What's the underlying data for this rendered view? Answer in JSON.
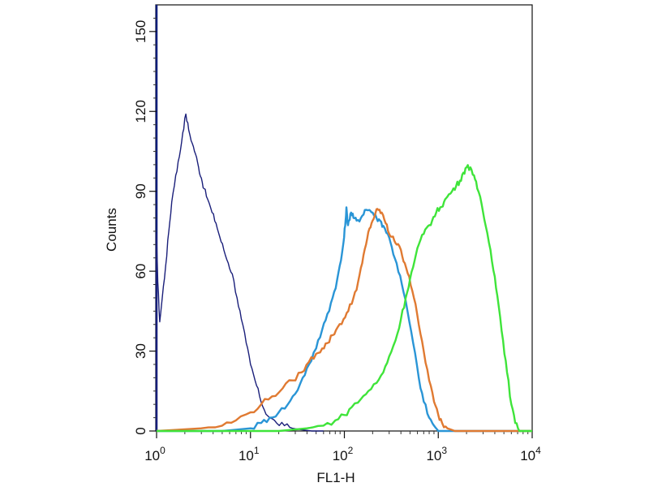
{
  "chart_data": {
    "type": "line",
    "title": "",
    "xlabel": "FL1-H",
    "ylabel": "Counts",
    "x_scale": "log",
    "xlim": [
      1,
      10000
    ],
    "ylim": [
      0,
      160
    ],
    "x_ticks": [
      {
        "base": "10",
        "exp": "0",
        "value": 1
      },
      {
        "base": "10",
        "exp": "1",
        "value": 10
      },
      {
        "base": "10",
        "exp": "2",
        "value": 100
      },
      {
        "base": "10",
        "exp": "3",
        "value": 1000
      },
      {
        "base": "10",
        "exp": "4",
        "value": 10000
      }
    ],
    "y_ticks": [
      "0",
      "30",
      "60",
      "90",
      "120",
      "150"
    ],
    "grid": false,
    "legend": "none",
    "series": [
      {
        "color": "#1a1f7a",
        "stroke_width": 1.4,
        "points": [
          [
            1.0,
            0
          ],
          [
            1.0,
            74
          ],
          [
            1.03,
            56
          ],
          [
            1.08,
            41
          ],
          [
            1.15,
            50
          ],
          [
            1.25,
            62
          ],
          [
            1.35,
            75
          ],
          [
            1.45,
            86
          ],
          [
            1.6,
            96
          ],
          [
            1.75,
            103
          ],
          [
            1.9,
            112
          ],
          [
            2.05,
            119
          ],
          [
            2.2,
            113
          ],
          [
            2.4,
            108
          ],
          [
            2.6,
            104
          ],
          [
            2.8,
            99
          ],
          [
            3.0,
            95
          ],
          [
            3.2,
            91
          ],
          [
            3.5,
            87
          ],
          [
            3.9,
            82
          ],
          [
            4.3,
            78
          ],
          [
            4.7,
            73
          ],
          [
            5.2,
            68
          ],
          [
            5.8,
            63
          ],
          [
            6.4,
            59
          ],
          [
            7.2,
            50
          ],
          [
            8.0,
            42
          ],
          [
            9.0,
            33
          ],
          [
            10.0,
            25
          ],
          [
            11.2,
            19
          ],
          [
            12.5,
            13
          ],
          [
            14.0,
            8
          ],
          [
            16.0,
            5
          ],
          [
            19.0,
            3
          ],
          [
            23.0,
            2
          ],
          [
            28.0,
            1
          ],
          [
            35.0,
            0.5
          ],
          [
            45.0,
            0
          ],
          [
            60.0,
            0
          ]
        ]
      },
      {
        "color": "#2a95d6",
        "stroke_width": 2.4,
        "points": [
          [
            1,
            0
          ],
          [
            5,
            0
          ],
          [
            10,
            1
          ],
          [
            13,
            3
          ],
          [
            16,
            5
          ],
          [
            20,
            7
          ],
          [
            25,
            10
          ],
          [
            30,
            14
          ],
          [
            36,
            20
          ],
          [
            42,
            25
          ],
          [
            50,
            31
          ],
          [
            58,
            38
          ],
          [
            66,
            44
          ],
          [
            75,
            50
          ],
          [
            84,
            57
          ],
          [
            92,
            64
          ],
          [
            98,
            71
          ],
          [
            102,
            77
          ],
          [
            105,
            84
          ],
          [
            108,
            78
          ],
          [
            112,
            79
          ],
          [
            118,
            82
          ],
          [
            125,
            80
          ],
          [
            135,
            79
          ],
          [
            150,
            80
          ],
          [
            165,
            83
          ],
          [
            185,
            83
          ],
          [
            200,
            82
          ],
          [
            220,
            80
          ],
          [
            240,
            79
          ],
          [
            260,
            77
          ],
          [
            290,
            74
          ],
          [
            320,
            69
          ],
          [
            360,
            63
          ],
          [
            410,
            55
          ],
          [
            470,
            45
          ],
          [
            540,
            33
          ],
          [
            620,
            20
          ],
          [
            700,
            11
          ],
          [
            800,
            5
          ],
          [
            900,
            2
          ],
          [
            1000,
            0
          ],
          [
            10000,
            0
          ]
        ]
      },
      {
        "color": "#e07a32",
        "stroke_width": 2.4,
        "points": [
          [
            1,
            0
          ],
          [
            3,
            1
          ],
          [
            5,
            2
          ],
          [
            7,
            4
          ],
          [
            10,
            7
          ],
          [
            13,
            10
          ],
          [
            17,
            13
          ],
          [
            22,
            16
          ],
          [
            28,
            19
          ],
          [
            35,
            22
          ],
          [
            42,
            26
          ],
          [
            50,
            29
          ],
          [
            58,
            31
          ],
          [
            66,
            33
          ],
          [
            75,
            36
          ],
          [
            85,
            39
          ],
          [
            98,
            42
          ],
          [
            110,
            45
          ],
          [
            125,
            50
          ],
          [
            140,
            56
          ],
          [
            155,
            63
          ],
          [
            170,
            70
          ],
          [
            185,
            76
          ],
          [
            200,
            79
          ],
          [
            215,
            82
          ],
          [
            230,
            83
          ],
          [
            250,
            82
          ],
          [
            275,
            78
          ],
          [
            300,
            74
          ],
          [
            330,
            73
          ],
          [
            360,
            70
          ],
          [
            400,
            68
          ],
          [
            440,
            63
          ],
          [
            490,
            58
          ],
          [
            550,
            50
          ],
          [
            620,
            40
          ],
          [
            700,
            30
          ],
          [
            800,
            19
          ],
          [
            900,
            11
          ],
          [
            1000,
            6
          ],
          [
            1100,
            3
          ],
          [
            1250,
            1
          ],
          [
            1500,
            0
          ],
          [
            10000,
            0
          ]
        ]
      },
      {
        "color": "#3fe43a",
        "stroke_width": 2.4,
        "points": [
          [
            1,
            0
          ],
          [
            20,
            0
          ],
          [
            40,
            1
          ],
          [
            60,
            2
          ],
          [
            80,
            4
          ],
          [
            100,
            6
          ],
          [
            120,
            9
          ],
          [
            150,
            12
          ],
          [
            180,
            15
          ],
          [
            220,
            18
          ],
          [
            260,
            22
          ],
          [
            300,
            28
          ],
          [
            350,
            34
          ],
          [
            400,
            42
          ],
          [
            450,
            50
          ],
          [
            500,
            57
          ],
          [
            560,
            64
          ],
          [
            620,
            70
          ],
          [
            700,
            74
          ],
          [
            780,
            77
          ],
          [
            860,
            79
          ],
          [
            950,
            82
          ],
          [
            1050,
            84
          ],
          [
            1150,
            86
          ],
          [
            1250,
            88
          ],
          [
            1400,
            90
          ],
          [
            1550,
            92
          ],
          [
            1700,
            94
          ],
          [
            1850,
            97
          ],
          [
            2000,
            99
          ],
          [
            2200,
            99
          ],
          [
            2400,
            96
          ],
          [
            2600,
            91
          ],
          [
            2900,
            85
          ],
          [
            3200,
            77
          ],
          [
            3600,
            68
          ],
          [
            4000,
            58
          ],
          [
            4400,
            47
          ],
          [
            4900,
            34
          ],
          [
            5400,
            22
          ],
          [
            6000,
            10
          ],
          [
            6600,
            3
          ],
          [
            7300,
            0
          ],
          [
            10000,
            0
          ]
        ]
      }
    ]
  }
}
